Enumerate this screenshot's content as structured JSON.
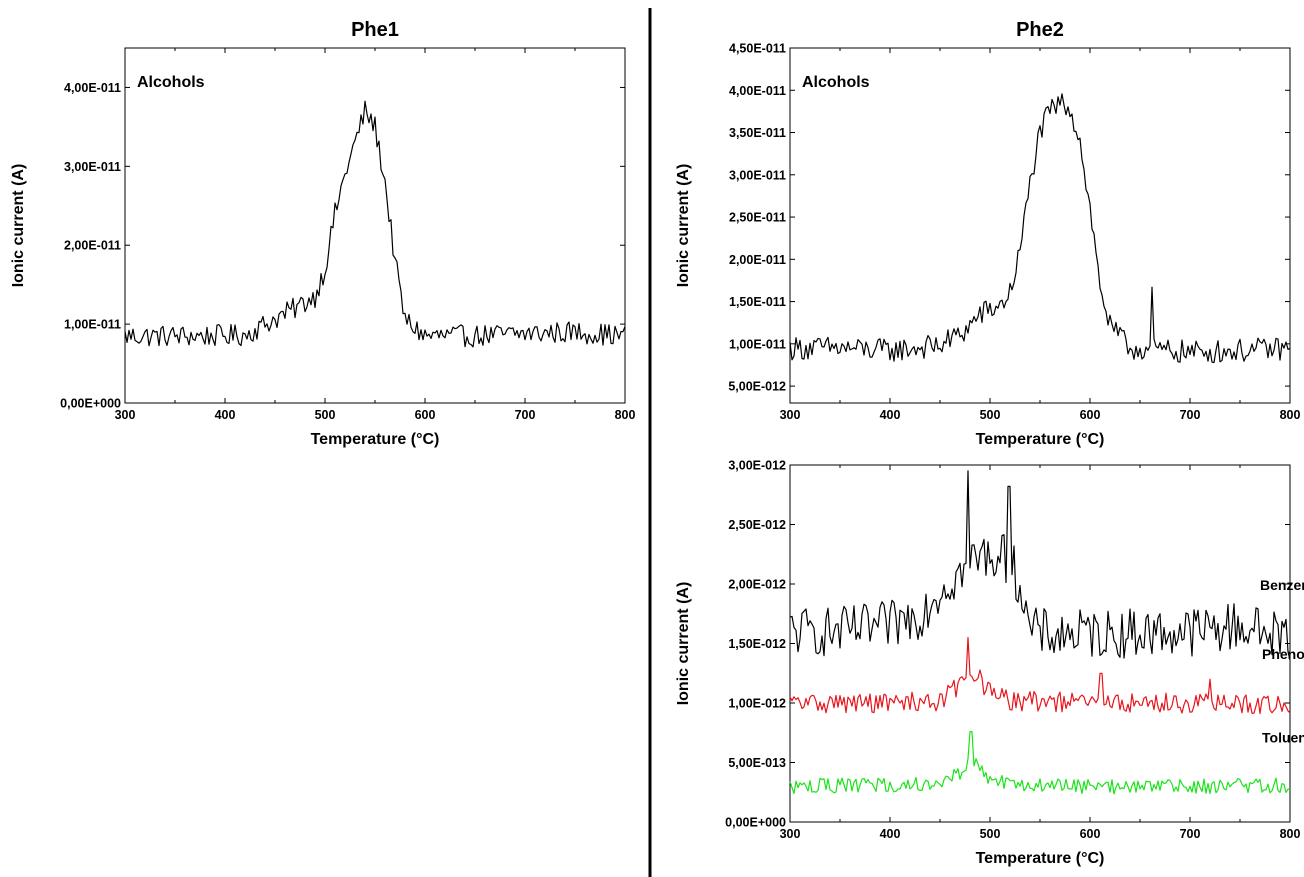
{
  "figure": {
    "divider_color": "#000000"
  },
  "chart_data": [
    {
      "type": "line",
      "title": "Phe1",
      "xlabel": "Temperature (°C)",
      "ylabel": "Ionic current (A)",
      "xlim": [
        300,
        800
      ],
      "ylim": [
        0,
        4.5e-11
      ],
      "x_ticks": [
        300,
        400,
        500,
        600,
        700,
        800
      ],
      "x_tick_labels": [
        "300",
        "400",
        "500",
        "600",
        "700",
        "800"
      ],
      "y_ticks": [
        0,
        1e-11,
        2e-11,
        3e-11,
        4e-11
      ],
      "y_tick_labels": [
        "0,00E+000",
        "1,00E-011",
        "2,00E-011",
        "3,00E-011",
        "4,00E-011"
      ],
      "grid": false,
      "annotation": "Alcohols",
      "series": [
        {
          "color": "#000000",
          "x": [
            300,
            340,
            380,
            420,
            455,
            470,
            490,
            500,
            510,
            520,
            530,
            540,
            550,
            560,
            570,
            580,
            600,
            650,
            700,
            750,
            800
          ],
          "values": [
            8.5e-12,
            8.5e-12,
            8.5e-12,
            8.6e-12,
            1.1e-11,
            1.2e-11,
            1.35e-11,
            1.7e-11,
            2.4e-11,
            2.9e-11,
            3.3e-11,
            3.7e-11,
            3.5e-11,
            2.8e-11,
            1.8e-11,
            1.05e-11,
            8.5e-12,
            8.5e-12,
            8.8e-12,
            9e-12,
            8.5e-12
          ],
          "noise": 2.8e-12,
          "spikes": []
        }
      ]
    },
    {
      "type": "line",
      "title": "Phe2",
      "xlabel": "Temperature (°C)",
      "ylabel": "Ionic current (A)",
      "xlim": [
        300,
        800
      ],
      "ylim": [
        3e-12,
        4.5e-11
      ],
      "x_ticks": [
        300,
        400,
        500,
        600,
        700,
        800
      ],
      "x_tick_labels": [
        "300",
        "400",
        "500",
        "600",
        "700",
        "800"
      ],
      "y_ticks": [
        5e-12,
        1e-11,
        1.5e-11,
        2e-11,
        2.5e-11,
        3e-11,
        3.5e-11,
        4e-11,
        4.5e-11
      ],
      "y_tick_labels": [
        "5,00E-012",
        "1,00E-011",
        "1,50E-011",
        "2,00E-011",
        "2,50E-011",
        "3,00E-011",
        "3,50E-011",
        "4,00E-011",
        "4,50E-011"
      ],
      "grid": false,
      "annotation": "Alcohols",
      "series": [
        {
          "color": "#000000",
          "x": [
            300,
            350,
            400,
            450,
            475,
            490,
            510,
            520,
            530,
            540,
            550,
            560,
            570,
            580,
            590,
            600,
            610,
            620,
            640,
            700,
            750,
            800
          ],
          "values": [
            9.5e-12,
            9.5e-12,
            9.2e-12,
            9.8e-12,
            1.15e-11,
            1.35e-11,
            1.45e-11,
            1.6e-11,
            2.1e-11,
            2.9e-11,
            3.5e-11,
            3.75e-11,
            3.85e-11,
            3.8e-11,
            3.4e-11,
            2.6e-11,
            1.7e-11,
            1.2e-11,
            9.5e-12,
            9e-12,
            9.2e-12,
            9.5e-12
          ],
          "noise": 2.8e-12,
          "spikes": [
            [
              662,
              1.67e-11
            ]
          ]
        }
      ]
    },
    {
      "type": "line",
      "title": "",
      "xlabel": "Temperature (°C)",
      "ylabel": "Ionic current (A)",
      "xlim": [
        300,
        800
      ],
      "ylim": [
        0,
        3e-12
      ],
      "x_ticks": [
        300,
        400,
        500,
        600,
        700,
        800
      ],
      "x_tick_labels": [
        "300",
        "400",
        "500",
        "600",
        "700",
        "800"
      ],
      "y_ticks": [
        0,
        5e-13,
        1e-12,
        1.5e-12,
        2e-12,
        2.5e-12,
        3e-12
      ],
      "y_tick_labels": [
        "0,00E+000",
        "5,00E-013",
        "1,00E-012",
        "1,50E-012",
        "2,00E-012",
        "2,50E-012",
        "3,00E-012"
      ],
      "grid": false,
      "series": [
        {
          "name": "Benzene",
          "color": "#000000",
          "label_at": [
            770,
            1.95e-12
          ],
          "x": [
            300,
            350,
            400,
            430,
            450,
            470,
            480,
            500,
            520,
            530,
            540,
            560,
            600,
            700,
            750,
            800
          ],
          "values": [
            1.6e-12,
            1.6e-12,
            1.65e-12,
            1.75e-12,
            1.95e-12,
            2.1e-12,
            2.2e-12,
            2.25e-12,
            2.2e-12,
            2e-12,
            1.6e-12,
            1.58e-12,
            1.58e-12,
            1.6e-12,
            1.65e-12,
            1.55e-12
          ],
          "noise": 4.2e-13,
          "spikes": [
            [
              478,
              2.95e-12
            ],
            [
              519,
              2.82e-12
            ]
          ]
        },
        {
          "name": "Phenols",
          "color": "#e8141b",
          "label_at": [
            772,
            1.37e-12
          ],
          "x": [
            300,
            400,
            450,
            470,
            480,
            490,
            500,
            520,
            600,
            700,
            800
          ],
          "values": [
            1e-12,
            1e-12,
            1.02e-12,
            1.15e-12,
            1.3e-12,
            1.2e-12,
            1.08e-12,
            1.02e-12,
            1e-12,
            1e-12,
            9.8e-13
          ],
          "noise": 1.7e-13,
          "spikes": [
            [
              478,
              1.55e-12
            ],
            [
              611,
              1.25e-12
            ],
            [
              720,
              1.2e-12
            ]
          ]
        },
        {
          "name": "Toluene",
          "color": "#19e419",
          "label_at": [
            772,
            6.7e-13
          ],
          "x": [
            300,
            400,
            450,
            470,
            480,
            490,
            500,
            520,
            600,
            700,
            800
          ],
          "values": [
            3e-13,
            3.1e-13,
            3.3e-13,
            4.2e-13,
            5.2e-13,
            4.6e-13,
            3.6e-13,
            3.1e-13,
            3e-13,
            3e-13,
            3.1e-13
          ],
          "noise": 1.3e-13,
          "spikes": [
            [
              481,
              7.6e-13
            ]
          ]
        }
      ]
    }
  ]
}
